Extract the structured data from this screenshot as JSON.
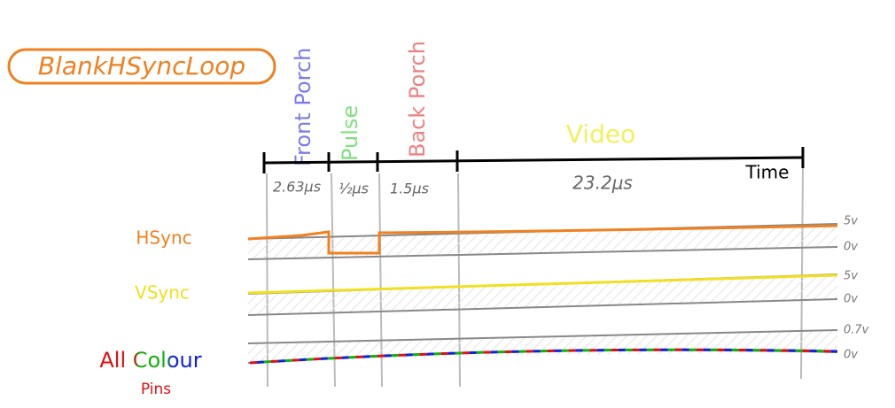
{
  "title": "BlankHSyncLoop",
  "phases": [
    {
      "label": "Front Porch",
      "duration": "2.63μs"
    },
    {
      "label": "Pulse",
      "duration": "½μs"
    },
    {
      "label": "Back Porch",
      "duration": "1.5μs"
    },
    {
      "label": "Video",
      "duration": "23.2μs"
    }
  ],
  "axis_label": "Time",
  "signals": [
    {
      "name": "HSync",
      "levels": [
        "5v",
        "0v"
      ]
    },
    {
      "name": "VSync",
      "levels": [
        "5v",
        "0v"
      ]
    },
    {
      "name": "All Colour",
      "subname": "Pins",
      "levels": [
        "0.7v",
        "0v"
      ]
    }
  ]
}
